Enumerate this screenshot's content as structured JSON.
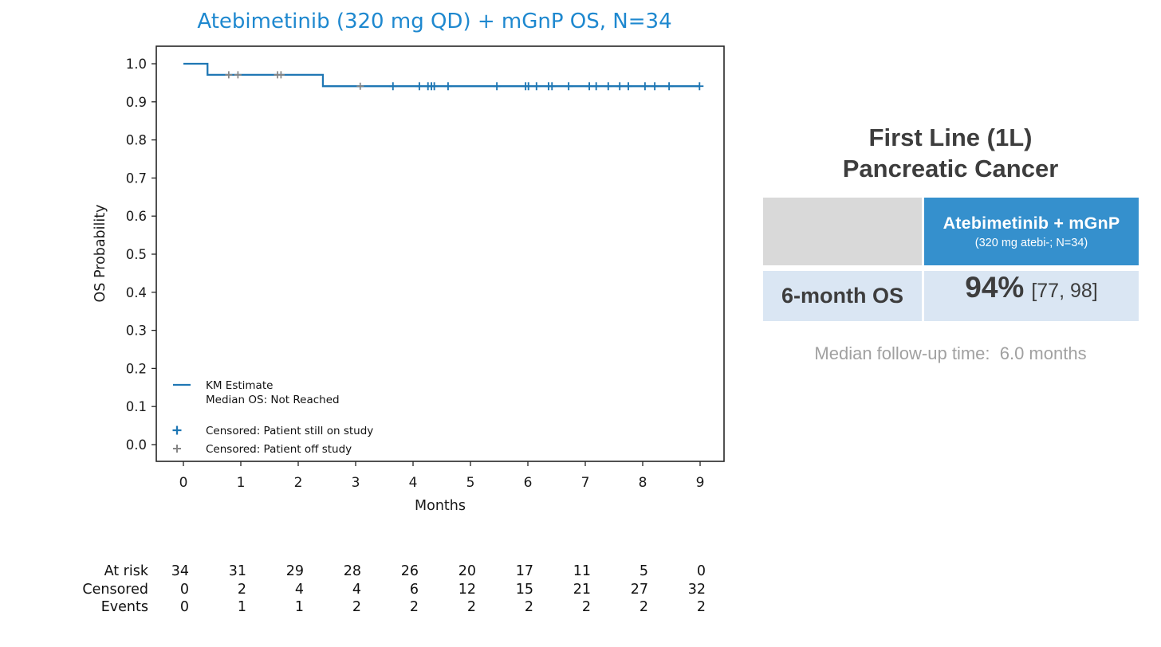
{
  "colors": {
    "km_line": "#1f77b4",
    "censor_off": "#868686",
    "chart_title": "#1e88cf",
    "header_blue": "#3590cd",
    "row_light_blue": "#dae6f3",
    "cell_grey": "#d9d9d9",
    "heading_text": "#3d3d3d",
    "note_grey": "#a1a1a1",
    "axis_text": "#1a1a1a"
  },
  "chart_data": {
    "type": "line",
    "subtype": "kaplan-meier-step",
    "title": "Atebimetinib (320 mg QD) + mGnP OS, N=34",
    "xlabel": "Months",
    "ylabel": "OS Probability",
    "xlim": [
      -0.49,
      9.42
    ],
    "ylim": [
      -0.05,
      1.05
    ],
    "x_ticks": [
      0,
      1,
      2,
      3,
      4,
      5,
      6,
      7,
      8,
      9
    ],
    "y_ticks": [
      1.0,
      0.9,
      0.8,
      0.7,
      0.6,
      0.5,
      0.4,
      0.3,
      0.2,
      0.1,
      0.0
    ],
    "grid": false,
    "legend_position": "lower-left-inside",
    "series": [
      {
        "name": "KM Estimate",
        "median_os": "Not Reached",
        "steps": [
          [
            0,
            1.0
          ],
          [
            0.42,
            0.971
          ],
          [
            2.43,
            0.941
          ],
          [
            9.0,
            0.941
          ]
        ]
      }
    ],
    "censored_still_on_study": {
      "label": "Censored: Patient still on study",
      "points": [
        [
          3.65,
          0.941
        ],
        [
          4.11,
          0.941
        ],
        [
          4.26,
          0.941
        ],
        [
          4.32,
          0.941
        ],
        [
          4.37,
          0.941
        ],
        [
          4.61,
          0.941
        ],
        [
          5.46,
          0.941
        ],
        [
          5.96,
          0.941
        ],
        [
          6.01,
          0.941
        ],
        [
          6.15,
          0.941
        ],
        [
          6.36,
          0.941
        ],
        [
          6.42,
          0.941
        ],
        [
          6.71,
          0.941
        ],
        [
          7.07,
          0.941
        ],
        [
          7.19,
          0.941
        ],
        [
          7.4,
          0.941
        ],
        [
          7.6,
          0.941
        ],
        [
          7.75,
          0.941
        ],
        [
          8.04,
          0.941
        ],
        [
          8.21,
          0.941
        ],
        [
          8.46,
          0.941
        ],
        [
          8.99,
          0.941
        ]
      ]
    },
    "censored_off_study": {
      "label": "Censored: Patient off study",
      "points": [
        [
          0.79,
          0.971
        ],
        [
          0.95,
          0.971
        ],
        [
          1.64,
          0.971
        ],
        [
          1.7,
          0.971
        ],
        [
          3.08,
          0.941
        ]
      ]
    },
    "legend": [
      "KM Estimate",
      "Median OS: Not Reached",
      "Censored: Patient still on study",
      "Censored: Patient off study"
    ],
    "at_risk_table": {
      "row_labels": [
        "At risk",
        "Censored",
        "Events"
      ],
      "columns": [
        0,
        1,
        2,
        3,
        4,
        5,
        6,
        7,
        8,
        9
      ],
      "rows": [
        [
          34,
          31,
          29,
          28,
          26,
          20,
          17,
          11,
          5,
          0
        ],
        [
          0,
          2,
          4,
          4,
          6,
          12,
          15,
          21,
          27,
          32
        ],
        [
          0,
          1,
          1,
          2,
          2,
          2,
          2,
          2,
          2,
          2
        ]
      ]
    }
  },
  "right_panel": {
    "title_line1": "First Line (1L)",
    "title_line2": "Pancreatic Cancer",
    "table": {
      "header_title": "Atebimetinib + mGnP",
      "header_subtitle": "(320 mg atebi-; N=34)",
      "row_label": "6-month OS",
      "value": "94%",
      "ci": "[77, 98]"
    },
    "median_note": "Median follow-up time:  6.0 months"
  }
}
